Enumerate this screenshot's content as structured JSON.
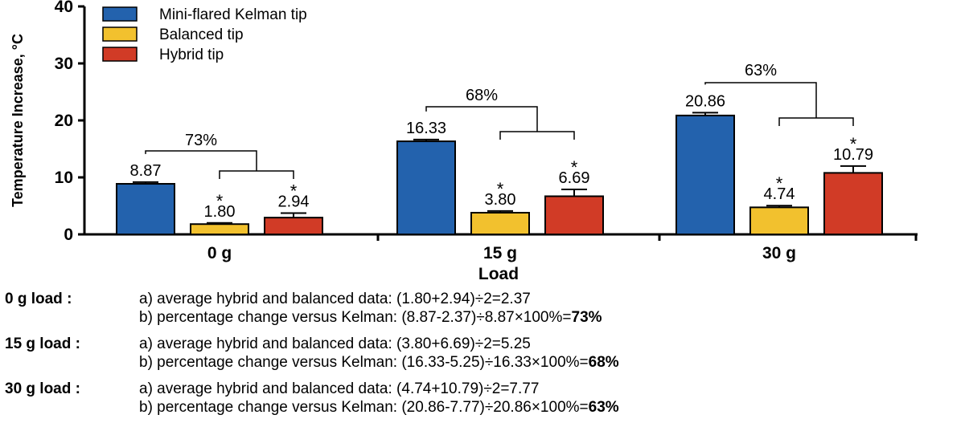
{
  "chart_data": {
    "type": "bar",
    "ylabel": "Temperature Increase, °C",
    "xlabel": "Load",
    "ylim": [
      0,
      40
    ],
    "yticks": [
      0,
      10,
      20,
      30,
      40
    ],
    "grid": false,
    "legend_position": "top-left",
    "categories": [
      "0 g",
      "15 g",
      "30 g"
    ],
    "series": [
      {
        "name": "Mini-flared Kelman tip",
        "color": "#2362ad",
        "values": [
          8.87,
          16.33,
          20.86
        ],
        "errors": [
          0.3,
          0.3,
          0.5
        ],
        "labels": [
          "8.87",
          "16.33",
          "20.86"
        ],
        "significant": [
          false,
          false,
          false
        ]
      },
      {
        "name": "Balanced tip",
        "color": "#f2c12e",
        "values": [
          1.8,
          3.8,
          4.74
        ],
        "errors": [
          0.2,
          0.3,
          0.3
        ],
        "labels": [
          "1.80",
          "3.80",
          "4.74"
        ],
        "significant": [
          true,
          true,
          true
        ]
      },
      {
        "name": "Hybrid tip",
        "color": "#d13b26",
        "values": [
          2.94,
          6.69,
          10.79
        ],
        "errors": [
          0.8,
          1.2,
          1.2
        ],
        "labels": [
          "2.94",
          "6.69",
          "10.79"
        ],
        "significant": [
          true,
          true,
          true
        ]
      }
    ],
    "significance_marker": "*",
    "brackets": [
      {
        "category": "0 g",
        "label": "73%"
      },
      {
        "category": "15 g",
        "label": "68%"
      },
      {
        "category": "30 g",
        "label": "63%"
      }
    ]
  },
  "notes": [
    {
      "label": "0 g load :",
      "line_a": "a) average hybrid and balanced data: (1.80+2.94)÷2=2.37",
      "line_b": "b) percentage change versus Kelman: (8.87-2.37)÷8.87×100%=",
      "result": "73%"
    },
    {
      "label": "15 g load :",
      "line_a": "a) average hybrid and balanced data: (3.80+6.69)÷2=5.25",
      "line_b": "b) percentage change versus Kelman: (16.33-5.25)÷16.33×100%=",
      "result": "68%"
    },
    {
      "label": "30 g load :",
      "line_a": "a) average hybrid and balanced data: (4.74+10.79)÷2=7.77",
      "line_b": "b) percentage change versus Kelman: (20.86-7.77)÷20.86×100%=",
      "result": "63%"
    }
  ]
}
